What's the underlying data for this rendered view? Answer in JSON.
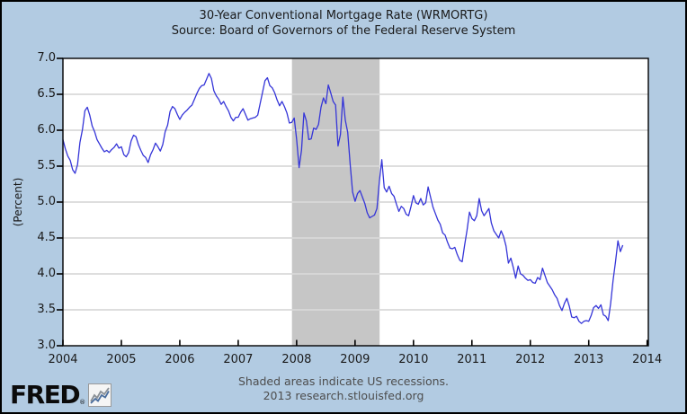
{
  "header": {
    "title": "30-Year Conventional Mortgage Rate (WRMORTG)",
    "subtitle": "Source: Board of Governors of the Federal Reserve System"
  },
  "footer": {
    "recession_note": "Shaded areas indicate US recessions.",
    "attribution": "2013 research.stlouisfed.org",
    "logo_text": "FRED",
    "logo_registered_mark": "®",
    "logo_icon": "mini-line-chart-icon"
  },
  "colors": {
    "background": "#b2cbe2",
    "plot_background": "#ffffff",
    "gridline": "#bdbdbd",
    "gridline_in_band": "#e6e6e6",
    "recession_band": "#c6c6c6",
    "series_line": "#3535d8",
    "frame": "#000000",
    "tick": "#000000",
    "title_text": "#1a1a1a",
    "footer_text": "#4d4d4d"
  },
  "chart_data": {
    "type": "line",
    "title": "30-Year Conventional Mortgage Rate (WRMORTG)",
    "subtitle": "Source: Board of Governors of the Federal Reserve System",
    "xlabel": "",
    "ylabel": "(Percent)",
    "xlim": [
      2004,
      2014.02
    ],
    "ylim": [
      3.0,
      7.0
    ],
    "x_ticks": [
      "2004",
      "2005",
      "2006",
      "2007",
      "2008",
      "2009",
      "2010",
      "2011",
      "2012",
      "2013",
      "2014"
    ],
    "y_ticks": [
      "7.0",
      "6.5",
      "6.0",
      "5.5",
      "5.0",
      "4.5",
      "4.0",
      "3.5",
      "3.0"
    ],
    "grid": "horizontal",
    "legend": "none",
    "recession_bands": [
      {
        "start": 2007.92,
        "end": 2009.42
      }
    ],
    "series": [
      {
        "name": "WRMORTG",
        "units": "percent",
        "frequency": "semimonthly",
        "start_year": 2004.0,
        "step_years": 0.0416667,
        "values": [
          5.87,
          5.74,
          5.64,
          5.58,
          5.45,
          5.4,
          5.52,
          5.83,
          6.01,
          6.27,
          6.32,
          6.21,
          6.06,
          5.98,
          5.87,
          5.81,
          5.75,
          5.7,
          5.72,
          5.69,
          5.73,
          5.76,
          5.81,
          5.75,
          5.77,
          5.66,
          5.63,
          5.69,
          5.85,
          5.93,
          5.91,
          5.8,
          5.72,
          5.65,
          5.62,
          5.55,
          5.66,
          5.73,
          5.82,
          5.77,
          5.71,
          5.8,
          5.98,
          6.07,
          6.26,
          6.33,
          6.3,
          6.22,
          6.15,
          6.21,
          6.25,
          6.28,
          6.32,
          6.35,
          6.43,
          6.51,
          6.58,
          6.62,
          6.63,
          6.71,
          6.79,
          6.72,
          6.55,
          6.48,
          6.43,
          6.36,
          6.4,
          6.33,
          6.27,
          6.18,
          6.13,
          6.18,
          6.18,
          6.25,
          6.3,
          6.22,
          6.14,
          6.16,
          6.17,
          6.18,
          6.21,
          6.37,
          6.53,
          6.69,
          6.73,
          6.62,
          6.59,
          6.52,
          6.42,
          6.34,
          6.4,
          6.33,
          6.24,
          6.1,
          6.11,
          6.17,
          5.87,
          5.48,
          5.72,
          6.24,
          6.13,
          5.87,
          5.88,
          6.03,
          6.01,
          6.08,
          6.32,
          6.45,
          6.37,
          6.63,
          6.52,
          6.4,
          6.35,
          5.78,
          5.94,
          6.46,
          6.14,
          5.97,
          5.53,
          5.14,
          5.01,
          5.12,
          5.16,
          5.07,
          4.98,
          4.85,
          4.78,
          4.8,
          4.82,
          4.91,
          5.29,
          5.59,
          5.2,
          5.14,
          5.22,
          5.12,
          5.08,
          4.97,
          4.87,
          4.94,
          4.91,
          4.83,
          4.81,
          4.94,
          5.09,
          4.99,
          4.97,
          5.05,
          4.96,
          4.99,
          5.21,
          5.07,
          4.93,
          4.84,
          4.75,
          4.69,
          4.57,
          4.54,
          4.44,
          4.36,
          4.35,
          4.37,
          4.27,
          4.19,
          4.17,
          4.4,
          4.61,
          4.86,
          4.77,
          4.74,
          4.81,
          5.05,
          4.88,
          4.81,
          4.86,
          4.91,
          4.71,
          4.6,
          4.55,
          4.5,
          4.6,
          4.52,
          4.39,
          4.15,
          4.22,
          4.09,
          3.94,
          4.11,
          4.0,
          3.98,
          3.94,
          3.91,
          3.92,
          3.88,
          3.87,
          3.95,
          3.92,
          4.08,
          3.98,
          3.88,
          3.83,
          3.78,
          3.71,
          3.66,
          3.56,
          3.49,
          3.59,
          3.66,
          3.55,
          3.4,
          3.39,
          3.41,
          3.34,
          3.31,
          3.34,
          3.35,
          3.34,
          3.42,
          3.53,
          3.56,
          3.52,
          3.57,
          3.43,
          3.41,
          3.35,
          3.59,
          3.91,
          4.17,
          4.46,
          4.31,
          4.4
        ]
      }
    ]
  }
}
